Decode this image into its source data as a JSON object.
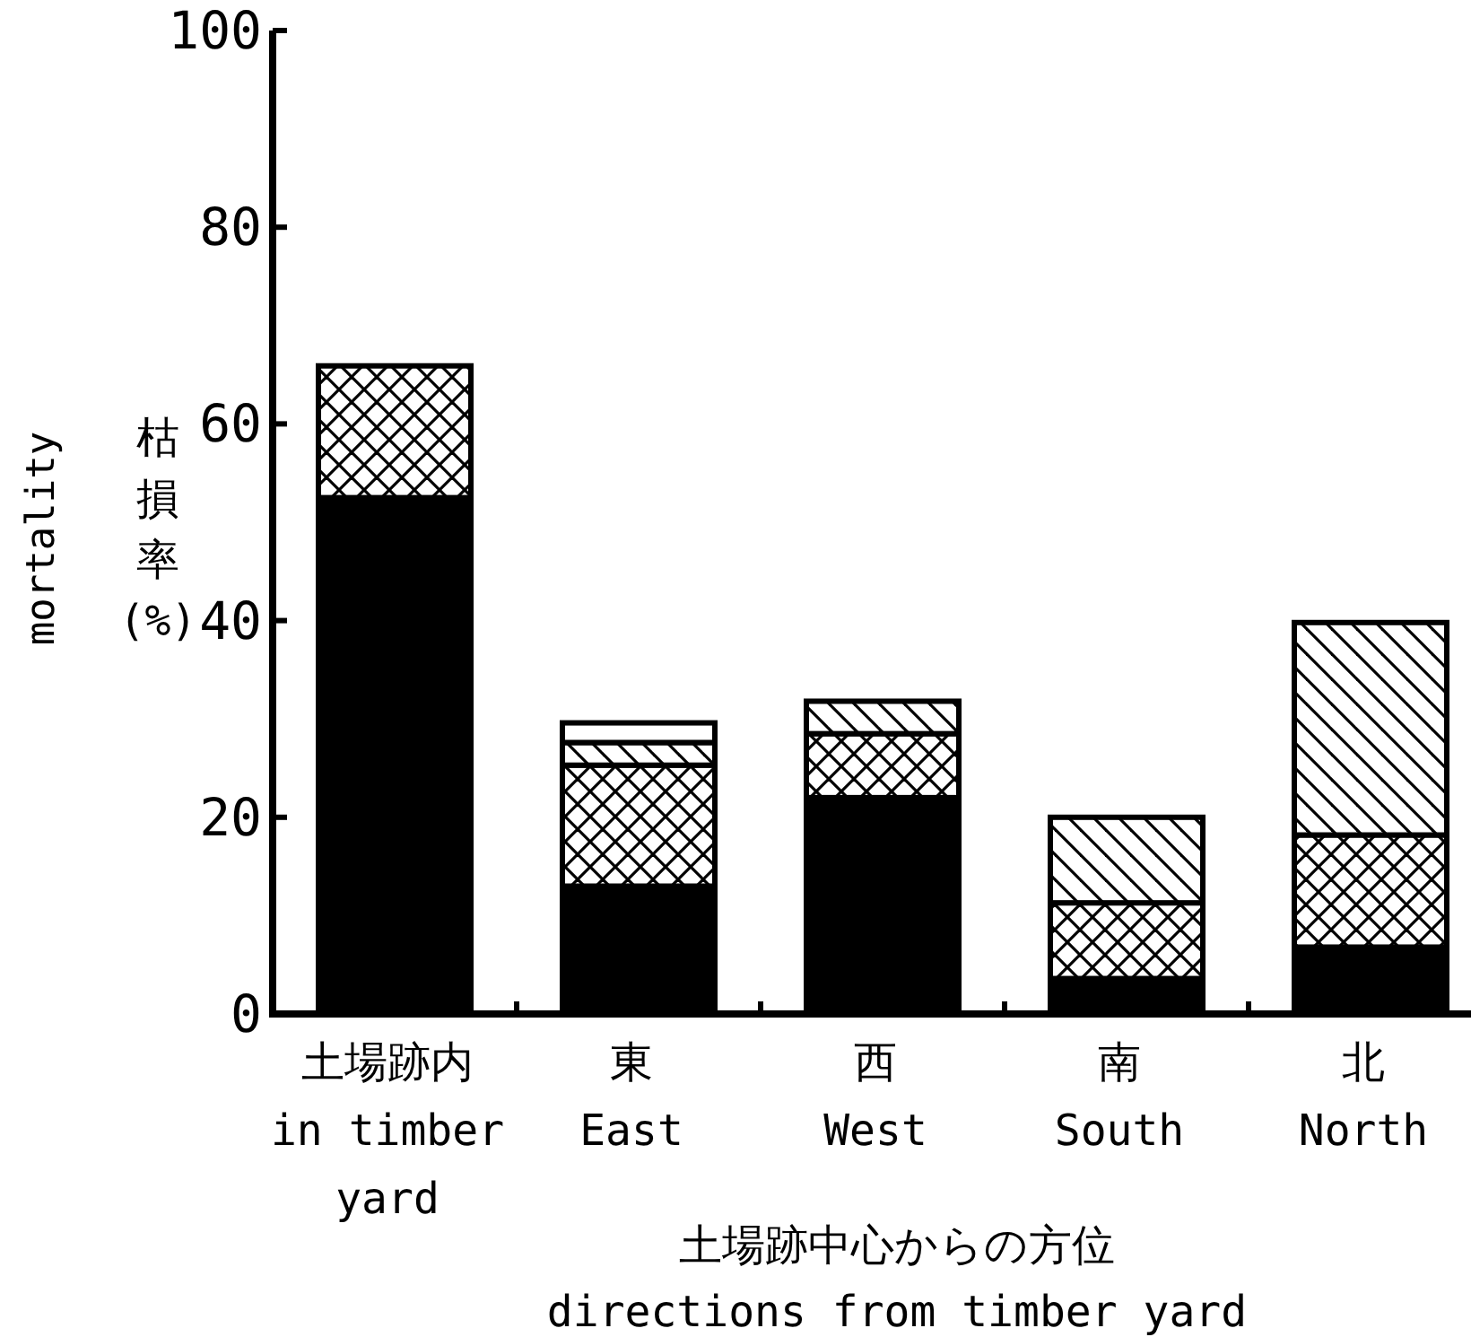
{
  "chart_data": {
    "type": "bar",
    "stacked": true,
    "categories": [
      "土場跡内\nin timber\nyard",
      "東\nEast",
      "西\nWest",
      "南\nSouth",
      "北\nNorth"
    ],
    "series": [
      {
        "color": "#000000",
        "values": [
          52.5,
          13,
          22,
          3.6,
          6.8
        ]
      },
      {
        "color": "#000000",
        "values": [
          13.4,
          12.3,
          6.5,
          7.7,
          11.4
        ]
      },
      {
        "color": "#000000",
        "values": [
          null,
          2.3,
          3.3,
          8.7,
          21.6
        ]
      },
      {
        "color": "#ffffff",
        "values": [
          null,
          2,
          null,
          null,
          null
        ]
      }
    ],
    "ylabel": "枯損率(%)",
    "xlabel": "土場跡中心からの方位\ndirections from timber yard",
    "annotations": [
      "mortality"
    ],
    "ylim": [
      0,
      100
    ],
    "yticks": [
      0,
      20,
      40,
      60,
      80,
      100
    ],
    "grid": false
  }
}
